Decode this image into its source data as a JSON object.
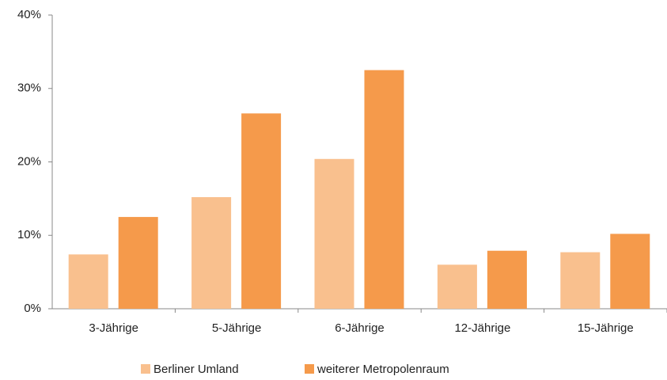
{
  "chart_data": {
    "type": "bar",
    "categories": [
      "3-Jährige",
      "5-Jährige",
      "6-Jährige",
      "12-Jährige",
      "15-Jährige"
    ],
    "series": [
      {
        "name": "Berliner Umland",
        "color": "#f9c08e",
        "values": [
          7.4,
          15.2,
          20.4,
          6.0,
          7.7
        ]
      },
      {
        "name": "weiterer Metropolenraum",
        "color": "#f59a4b",
        "values": [
          12.5,
          26.6,
          32.5,
          7.9,
          10.2
        ]
      }
    ],
    "ylim": [
      0,
      40
    ],
    "yticks": [
      {
        "value": 0,
        "label": "0%"
      },
      {
        "value": 10,
        "label": "10%"
      },
      {
        "value": 20,
        "label": "20%"
      },
      {
        "value": 30,
        "label": "30%"
      },
      {
        "value": 40,
        "label": "40%"
      }
    ],
    "grid": false,
    "legend": "bottom"
  }
}
